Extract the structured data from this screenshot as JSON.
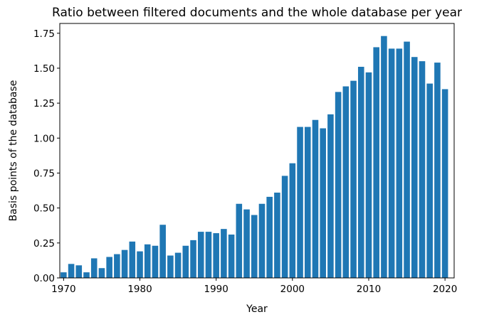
{
  "chart_data": {
    "type": "bar",
    "title": "Ratio between filtered documents and the whole database per year",
    "xlabel": "Year",
    "ylabel": "Basis points of the database",
    "xlim": [
      1969.5,
      2021.2
    ],
    "ylim": [
      0,
      1.82
    ],
    "xticks": [
      1970,
      1980,
      1990,
      2000,
      2010,
      2020
    ],
    "xtick_labels": [
      "1970",
      "1980",
      "1990",
      "2000",
      "2010",
      "2020"
    ],
    "yticks": [
      0,
      0.25,
      0.5,
      0.75,
      1.0,
      1.25,
      1.5,
      1.75
    ],
    "ytick_labels": [
      "0.00",
      "0.25",
      "0.50",
      "0.75",
      "1.00",
      "1.25",
      "1.50",
      "1.75"
    ],
    "grid": false,
    "bar_color": "#1f77b4",
    "x": [
      1970,
      1971,
      1972,
      1973,
      1974,
      1975,
      1976,
      1977,
      1978,
      1979,
      1980,
      1981,
      1982,
      1983,
      1984,
      1985,
      1986,
      1987,
      1988,
      1989,
      1990,
      1991,
      1992,
      1993,
      1994,
      1995,
      1996,
      1997,
      1998,
      1999,
      2000,
      2001,
      2002,
      2003,
      2004,
      2005,
      2006,
      2007,
      2008,
      2009,
      2010,
      2011,
      2012,
      2013,
      2014,
      2015,
      2016,
      2017,
      2018,
      2019,
      2020
    ],
    "values": [
      0.04,
      0.1,
      0.09,
      0.04,
      0.14,
      0.07,
      0.15,
      0.17,
      0.2,
      0.26,
      0.19,
      0.24,
      0.23,
      0.38,
      0.16,
      0.18,
      0.23,
      0.27,
      0.33,
      0.33,
      0.32,
      0.35,
      0.31,
      0.53,
      0.49,
      0.45,
      0.53,
      0.58,
      0.61,
      0.73,
      0.82,
      1.08,
      1.08,
      1.13,
      1.07,
      1.17,
      1.33,
      1.37,
      1.41,
      1.51,
      1.47,
      1.65,
      1.73,
      1.64,
      1.64,
      1.69,
      1.58,
      1.55,
      1.39,
      1.54,
      1.35
    ]
  }
}
